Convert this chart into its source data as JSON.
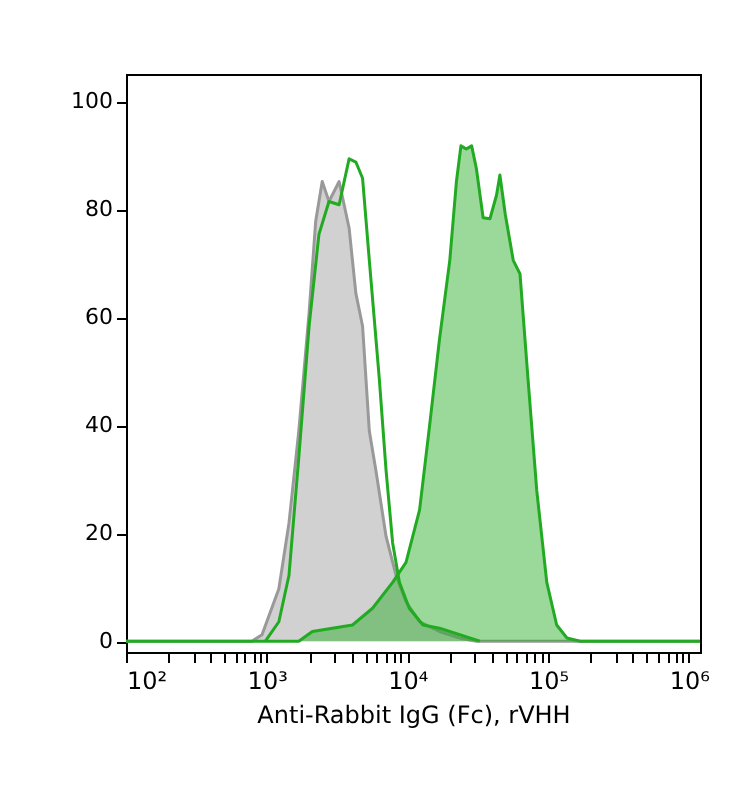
{
  "chart_data": {
    "type": "area",
    "xlabel": "Anti-Rabbit IgG (Fc), rVHH",
    "log": "x",
    "grid": false,
    "xlim": [
      100,
      1200000
    ],
    "ylim": [
      -2,
      105
    ],
    "xticks": [
      {
        "value": 100,
        "label": "10²"
      },
      {
        "value": 200,
        "label": null
      },
      {
        "value": 300,
        "label": null
      },
      {
        "value": 400,
        "label": null
      },
      {
        "value": 500,
        "label": null
      },
      {
        "value": 600,
        "label": null
      },
      {
        "value": 700,
        "label": null
      },
      {
        "value": 800,
        "label": null
      },
      {
        "value": 900,
        "label": null
      },
      {
        "value": 1000,
        "label": "10³"
      },
      {
        "value": 2000,
        "label": null
      },
      {
        "value": 3000,
        "label": null
      },
      {
        "value": 4000,
        "label": null
      },
      {
        "value": 5000,
        "label": null
      },
      {
        "value": 6000,
        "label": null
      },
      {
        "value": 7000,
        "label": null
      },
      {
        "value": 8000,
        "label": null
      },
      {
        "value": 9000,
        "label": null
      },
      {
        "value": 10000,
        "label": "10⁴"
      },
      {
        "value": 20000,
        "label": null
      },
      {
        "value": 30000,
        "label": null
      },
      {
        "value": 40000,
        "label": null
      },
      {
        "value": 50000,
        "label": null
      },
      {
        "value": 60000,
        "label": null
      },
      {
        "value": 70000,
        "label": null
      },
      {
        "value": 80000,
        "label": null
      },
      {
        "value": 90000,
        "label": null
      },
      {
        "value": 100000,
        "label": "10⁵"
      },
      {
        "value": 200000,
        "label": null
      },
      {
        "value": 300000,
        "label": null
      },
      {
        "value": 400000,
        "label": null
      },
      {
        "value": 500000,
        "label": null
      },
      {
        "value": 600000,
        "label": null
      },
      {
        "value": 700000,
        "label": null
      },
      {
        "value": 800000,
        "label": null
      },
      {
        "value": 900000,
        "label": null
      },
      {
        "value": 1000000,
        "label": "10⁶"
      }
    ],
    "yticks": [
      0,
      20,
      40,
      60,
      80,
      100
    ],
    "series": [
      {
        "color": "#999999",
        "x": [
          100,
          785,
          926,
          1220,
          1440,
          1690,
          2000,
          2230,
          2480,
          2770,
          3270,
          3850,
          4300,
          4800,
          5360,
          5970,
          7050,
          8300,
          9770,
          12200,
          16900,
          23500,
          30900,
          1200000
        ],
        "values": [
          0,
          0,
          1.2,
          9.7,
          21.9,
          38.9,
          60.8,
          77.8,
          85.1,
          81.4,
          85.1,
          76.5,
          64.4,
          58.3,
          38.9,
          31.6,
          19.4,
          12.2,
          7.3,
          3.6,
          1.8,
          0.6,
          0,
          0
        ]
      },
      {
        "color": "#22aa22",
        "x": [
          100,
          1690,
          2110,
          2930,
          4070,
          5650,
          7850,
          9770,
          12200,
          14400,
          16900,
          20000,
          22300,
          24000,
          26200,
          28600,
          30900,
          34500,
          38600,
          43000,
          45400,
          49600,
          56500,
          63100,
          71900,
          83000,
          97800,
          115000,
          136000,
          169000,
          1200000
        ],
        "values": [
          0,
          0,
          1.8,
          2.4,
          3.0,
          6.1,
          10.9,
          14.6,
          24.3,
          40.1,
          55.9,
          70.5,
          85.1,
          91.7,
          91.1,
          91.7,
          87.5,
          78.4,
          78.2,
          82.6,
          86.3,
          79.0,
          70.5,
          68.0,
          48.6,
          27.9,
          10.9,
          3.0,
          0.6,
          0,
          0
        ]
      },
      {
        "type": "line",
        "color": "#22aa22",
        "x": [
          978,
          1220,
          1440,
          1690,
          2000,
          2350,
          2770,
          3270,
          3850,
          4300,
          4800,
          5360,
          6310,
          7050,
          7850,
          8770,
          10300,
          12900,
          16900,
          23500,
          32700
        ],
        "values": [
          0,
          3.6,
          12.2,
          34.0,
          58.3,
          75.3,
          81.4,
          80.8,
          89.3,
          88.7,
          85.7,
          70.5,
          48.6,
          31.6,
          18.2,
          10.9,
          6.1,
          3.0,
          2.4,
          1.2,
          0
        ]
      }
    ]
  }
}
